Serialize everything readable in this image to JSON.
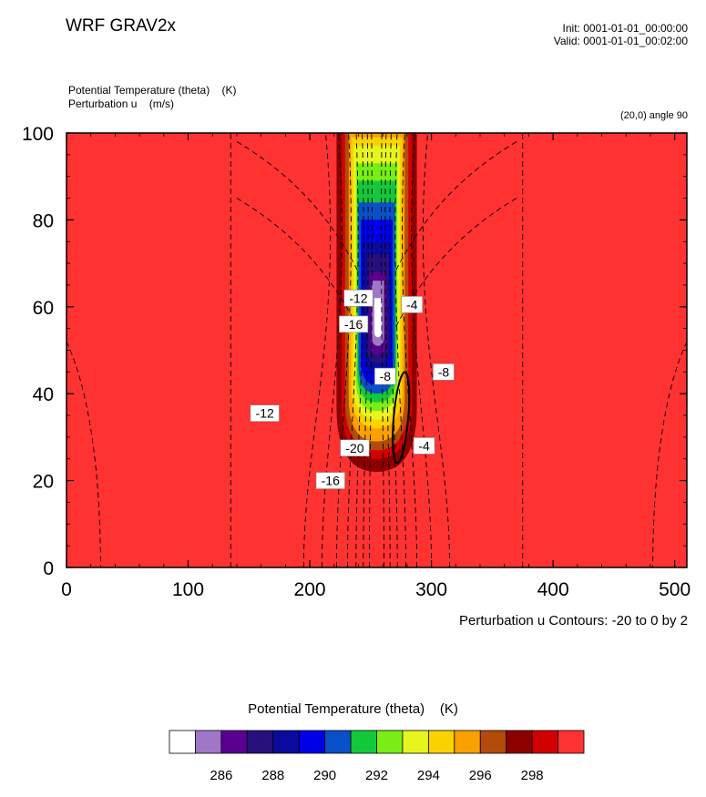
{
  "header": {
    "title": "WRF GRAV2x",
    "init": "Init: 0001-01-01_00:00:00",
    "valid": "Valid: 0001-01-01_00:02:00"
  },
  "fields": {
    "line1": "Potential Temperature (theta)    (K)",
    "line2": "Perturbation u    (m/s)"
  },
  "cross_section": "(20,0) angle 90",
  "contour_info": "Perturbation u Contours: -20 to 0 by 2",
  "colorbar": {
    "title": "Potential Temperature (theta)    (K)",
    "colors": [
      "#ffffff",
      "#a077c8",
      "#5a0090",
      "#28107c",
      "#0a0a9e",
      "#0000e8",
      "#0a50c8",
      "#14c83c",
      "#78ee14",
      "#e6f51e",
      "#fad200",
      "#faa000",
      "#b44b0a",
      "#8c0000",
      "#d20000",
      "#ff3232"
    ],
    "tick_labels": [
      "286",
      "288",
      "290",
      "292",
      "294",
      "296",
      "298"
    ]
  },
  "chart_data": {
    "type": "contour",
    "xlim": [
      0,
      510
    ],
    "ylim": [
      0,
      100
    ],
    "x_ticks": [
      0,
      100,
      200,
      300,
      400,
      500
    ],
    "y_ticks": [
      0,
      20,
      40,
      60,
      80,
      100
    ],
    "background_color": "#ff3232",
    "plume_layers": [
      {
        "color": "#8c0000",
        "x_center": 255,
        "x_half": 33,
        "y_bottom": 22,
        "y_top": 100
      },
      {
        "color": "#d20000",
        "x_center": 255,
        "x_half": 29,
        "y_bottom": 25,
        "y_top": 100
      },
      {
        "color": "#b44b0a",
        "x_center": 255,
        "x_half": 26,
        "y_bottom": 27,
        "y_top": 100
      },
      {
        "color": "#faa000",
        "x_center": 255,
        "x_half": 23,
        "y_bottom": 29,
        "y_top": 100
      },
      {
        "color": "#fad200",
        "x_center": 255,
        "x_half": 21,
        "y_bottom": 32,
        "y_top": 99
      },
      {
        "color": "#e6f51e",
        "x_center": 255,
        "x_half": 19,
        "y_bottom": 34,
        "y_top": 97
      },
      {
        "color": "#78ee14",
        "x_center": 255,
        "x_half": 17,
        "y_bottom": 36,
        "y_top": 93
      },
      {
        "color": "#14c83c",
        "x_center": 255,
        "x_half": 16,
        "y_bottom": 38,
        "y_top": 89
      },
      {
        "color": "#0a50c8",
        "x_center": 255,
        "x_half": 15,
        "y_bottom": 40,
        "y_top": 84
      },
      {
        "color": "#0000e8",
        "x_center": 255,
        "x_half": 13,
        "y_bottom": 42,
        "y_top": 80
      },
      {
        "color": "#0a0a9e",
        "x_center": 255,
        "x_half": 11,
        "y_bottom": 45,
        "y_top": 75
      },
      {
        "color": "#28107c",
        "x_center": 256,
        "x_half": 9,
        "y_bottom": 47,
        "y_top": 72
      },
      {
        "color": "#5a0090",
        "x_center": 256,
        "x_half": 7,
        "y_bottom": 49,
        "y_top": 68
      },
      {
        "color": "#a077c8",
        "x_center": 256,
        "x_half": 5,
        "y_bottom": 51,
        "y_top": 66
      },
      {
        "color": "#ffffff",
        "x_center": 256,
        "x_half": 3,
        "y_bottom": 53,
        "y_top": 62
      }
    ],
    "contour_labels": [
      {
        "text": "-12",
        "x": 240,
        "y": 62
      },
      {
        "text": "-4",
        "x": 284,
        "y": 60.5
      },
      {
        "text": "-16",
        "x": 236,
        "y": 56
      },
      {
        "text": "-8",
        "x": 262,
        "y": 44
      },
      {
        "text": "-8",
        "x": 310,
        "y": 45
      },
      {
        "text": "-12",
        "x": 163,
        "y": 35.5
      },
      {
        "text": "-20",
        "x": 237,
        "y": 27.5
      },
      {
        "text": "-4",
        "x": 294,
        "y": 28
      },
      {
        "text": "-16",
        "x": 217,
        "y": 20
      }
    ]
  }
}
